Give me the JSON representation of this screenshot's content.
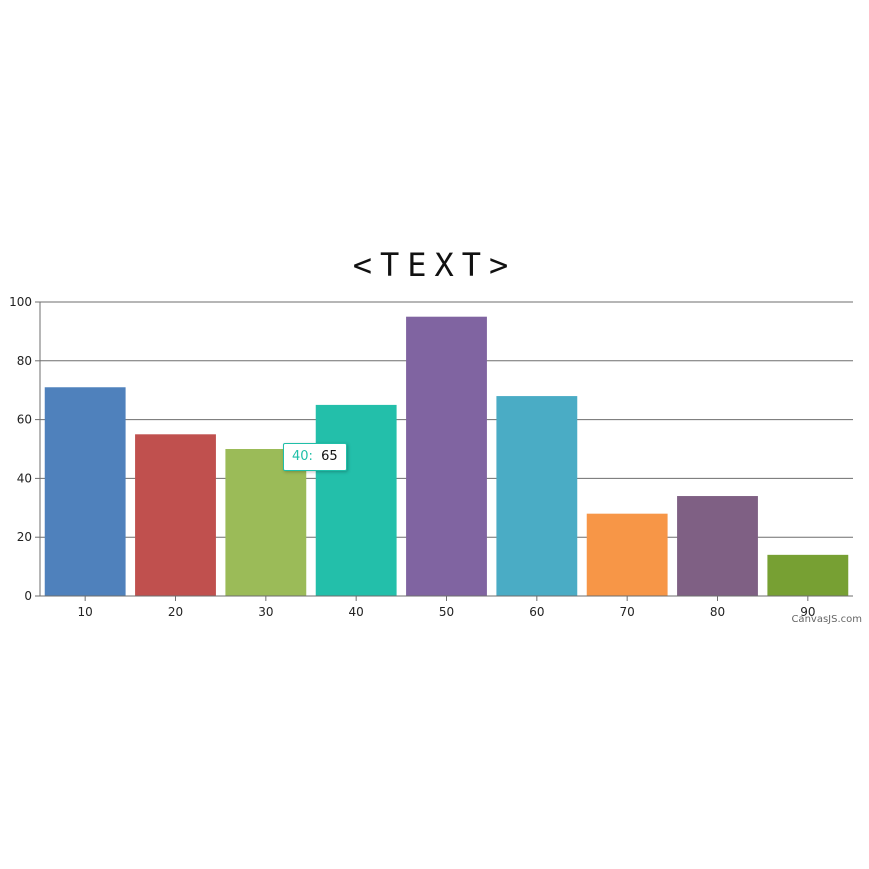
{
  "chart_data": {
    "type": "bar",
    "title": "<TEXT>",
    "categories": [
      "10",
      "20",
      "30",
      "40",
      "50",
      "60",
      "70",
      "80",
      "90"
    ],
    "values": [
      71,
      55,
      50,
      65,
      95,
      68,
      28,
      34,
      14
    ],
    "colors": [
      "#4f81bc",
      "#c0504e",
      "#9bbb58",
      "#23bfaa",
      "#8064a1",
      "#4aacc5",
      "#f79647",
      "#7f6084",
      "#77a033"
    ],
    "ylim": [
      0,
      100
    ],
    "yticks": [
      0,
      20,
      40,
      60,
      80,
      100
    ],
    "grid": true,
    "xlabel": "",
    "ylabel": ""
  },
  "tooltip": {
    "key": "40:",
    "value": "65",
    "border_color": "#1fbfa8"
  },
  "credit": "CanvasJS.com"
}
